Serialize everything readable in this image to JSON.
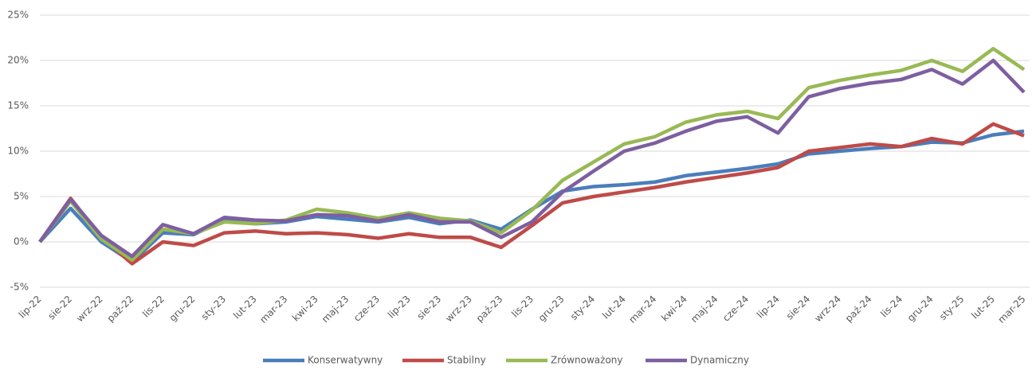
{
  "chart_data": {
    "type": "line",
    "categories": [
      "lip-22",
      "sie-22",
      "wrz-22",
      "paź-22",
      "lis-22",
      "gru-22",
      "sty-23",
      "lut-23",
      "mar-23",
      "kwi-23",
      "maj-23",
      "cze-23",
      "lip-23",
      "sie-23",
      "wrz-23",
      "paź-23",
      "lis-23",
      "gru-23",
      "sty-24",
      "lut-24",
      "mar-24",
      "kwi-24",
      "maj-24",
      "cze-24",
      "lip-24",
      "sie-24",
      "wrz-24",
      "paź-24",
      "lis-24",
      "gru-24",
      "sty-25",
      "lut-25",
      "mar-25"
    ],
    "series": [
      {
        "name": "Konserwatywny",
        "color": "#4a7ebb",
        "values": [
          0,
          3.7,
          0,
          -2.2,
          1.0,
          0.8,
          2.4,
          2.0,
          2.2,
          2.8,
          2.5,
          2.2,
          2.7,
          2.0,
          2.4,
          1.4,
          3.6,
          5.6,
          6.1,
          6.3,
          6.6,
          7.3,
          7.7,
          8.1,
          8.6,
          9.7,
          10.0,
          10.3,
          10.5,
          11.0,
          10.9,
          11.8,
          12.2
        ]
      },
      {
        "name": "Stabilny",
        "color": "#be4b48",
        "values": [
          0,
          4.8,
          0.5,
          -2.4,
          0,
          -0.4,
          1.0,
          1.2,
          0.9,
          1.0,
          0.8,
          0.4,
          0.9,
          0.5,
          0.5,
          -0.6,
          1.8,
          4.3,
          5.0,
          5.5,
          6.0,
          6.6,
          7.1,
          7.6,
          8.2,
          10.0,
          10.4,
          10.8,
          10.5,
          11.4,
          10.8,
          13.0,
          11.7
        ]
      },
      {
        "name": "Zrównoważony",
        "color": "#98b954",
        "values": [
          0,
          4.5,
          0.3,
          -2.0,
          1.4,
          0.9,
          2.2,
          2.0,
          2.4,
          3.6,
          3.2,
          2.6,
          3.2,
          2.6,
          2.3,
          1.0,
          3.5,
          6.8,
          8.8,
          10.8,
          11.6,
          13.2,
          14.0,
          14.4,
          13.6,
          17.0,
          17.8,
          18.4,
          18.9,
          20.0,
          18.8,
          21.3,
          19.0
        ]
      },
      {
        "name": "Dynamiczny",
        "color": "#7d5fa0",
        "values": [
          0,
          4.7,
          0.7,
          -1.6,
          1.9,
          0.9,
          2.7,
          2.4,
          2.3,
          3.0,
          2.9,
          2.3,
          3.0,
          2.2,
          2.2,
          0.5,
          2.2,
          5.5,
          7.8,
          10.0,
          10.9,
          12.2,
          13.3,
          13.8,
          12.0,
          16.0,
          16.9,
          17.5,
          17.9,
          19.0,
          17.4,
          20.0,
          16.5
        ]
      }
    ],
    "ylim": [
      -5,
      25
    ],
    "yticks": [
      {
        "value": -5,
        "label": "-5%"
      },
      {
        "value": 0,
        "label": "0%"
      },
      {
        "value": 5,
        "label": "5%"
      },
      {
        "value": 10,
        "label": "10%"
      },
      {
        "value": 15,
        "label": "15%"
      },
      {
        "value": 20,
        "label": "20%"
      },
      {
        "value": 25,
        "label": "25%"
      }
    ],
    "grid": true
  }
}
